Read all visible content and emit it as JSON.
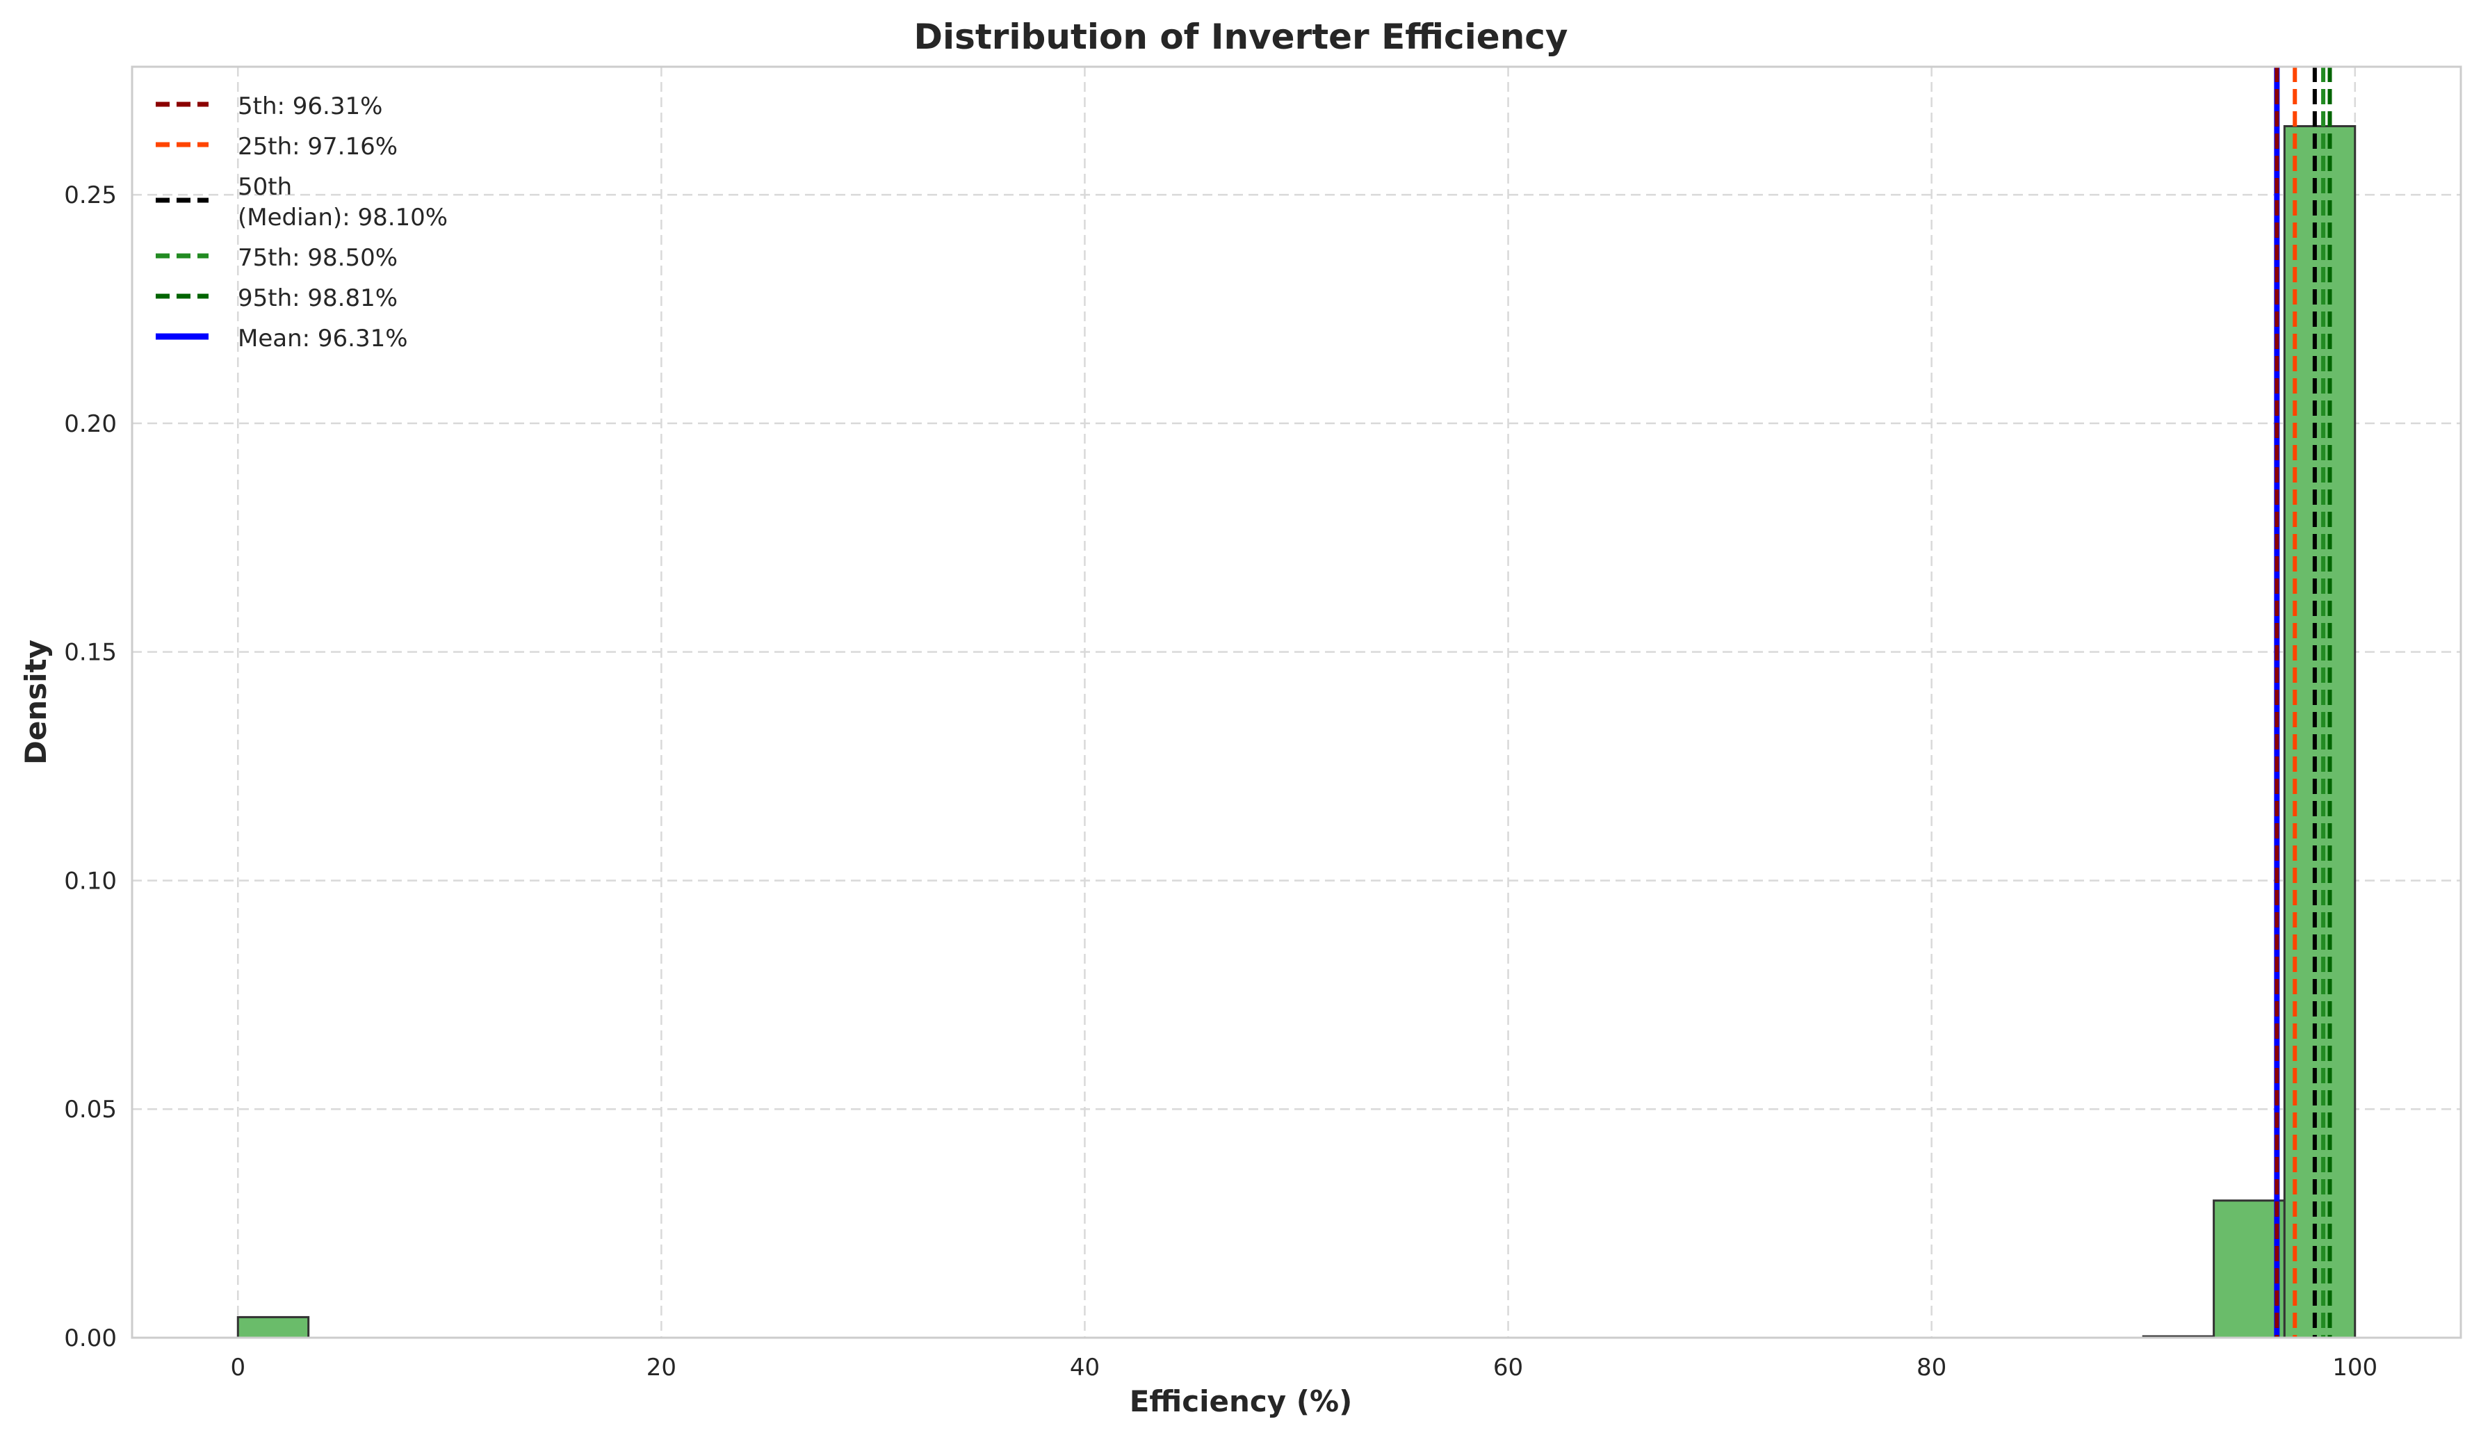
{
  "chart_data": {
    "type": "bar",
    "title": "Distribution of Inverter Efficiency",
    "xlabel": "Efficiency (%)",
    "ylabel": "Density",
    "xlim": [
      -5,
      105
    ],
    "ylim": [
      0,
      0.278
    ],
    "x_ticks": [
      0,
      20,
      40,
      60,
      80,
      100
    ],
    "y_ticks": [
      0.0,
      0.05,
      0.1,
      0.15,
      0.2,
      0.25
    ],
    "x_tick_labels": [
      "0",
      "20",
      "40",
      "60",
      "80",
      "100"
    ],
    "y_tick_labels": [
      "0.00",
      "0.05",
      "0.10",
      "0.15",
      "0.20",
      "0.25"
    ],
    "grid": true,
    "legend_position": "top-left",
    "histogram": {
      "bin_width": 3.33,
      "bar_color": "#6abc6a",
      "edge_color": "#333333",
      "bins": [
        {
          "start": 0.0,
          "end": 3.33,
          "density": 0.0045
        },
        {
          "start": 90.0,
          "end": 93.33,
          "density": 0.0003
        },
        {
          "start": 93.33,
          "end": 96.67,
          "density": 0.03
        },
        {
          "start": 96.67,
          "end": 100.0,
          "density": 0.265
        }
      ]
    },
    "reference_lines": [
      {
        "label": "5th: 96.31%",
        "value": 96.31,
        "color": "#8b0000",
        "style": "dashed"
      },
      {
        "label": "25th: 97.16%",
        "value": 97.16,
        "color": "#ff4500",
        "style": "dashed"
      },
      {
        "label_lines": [
          "50th",
          "(Median): 98.10%"
        ],
        "value": 98.1,
        "color": "#000000",
        "style": "dashed"
      },
      {
        "label": "75th: 98.50%",
        "value": 98.5,
        "color": "#228b22",
        "style": "dashed"
      },
      {
        "label": "95th: 98.81%",
        "value": 98.81,
        "color": "#006400",
        "style": "dashed"
      },
      {
        "label": "Mean: 96.31%",
        "value": 96.31,
        "color": "#0000ff",
        "style": "solid"
      }
    ]
  }
}
